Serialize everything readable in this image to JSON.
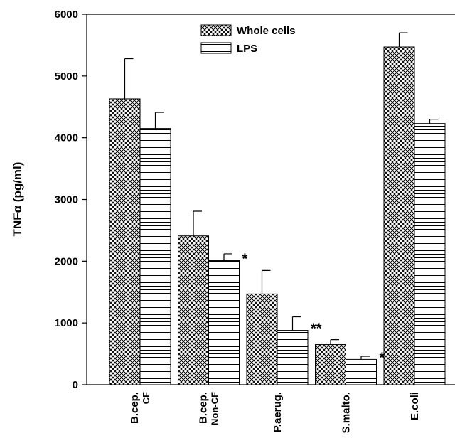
{
  "chart_data": {
    "type": "bar",
    "y_label": "TNFα (pg/ml)",
    "categories": [
      [
        "B.cep.",
        "CF"
      ],
      [
        "B.cep.",
        "Non-CF"
      ],
      [
        "P.aerug."
      ],
      [
        "S.malto."
      ],
      [
        "E.coli"
      ]
    ],
    "series": [
      {
        "name": "Whole cells",
        "color": "#000000",
        "pattern": "crosshatch",
        "values": [
          4630,
          2410,
          1470,
          650,
          5470
        ],
        "errors": [
          650,
          400,
          380,
          80,
          230
        ]
      },
      {
        "name": "LPS",
        "color": "#000000",
        "pattern": "horizontal",
        "values": [
          4150,
          2010,
          880,
          410,
          4230
        ],
        "errors": [
          260,
          110,
          220,
          50,
          70
        ],
        "annotations": [
          null,
          "*",
          "**",
          "***",
          null
        ]
      }
    ],
    "ylim": [
      0,
      6000
    ],
    "yticks": [
      0,
      1000,
      2000,
      3000,
      4000,
      5000,
      6000
    ],
    "legend": "top"
  }
}
